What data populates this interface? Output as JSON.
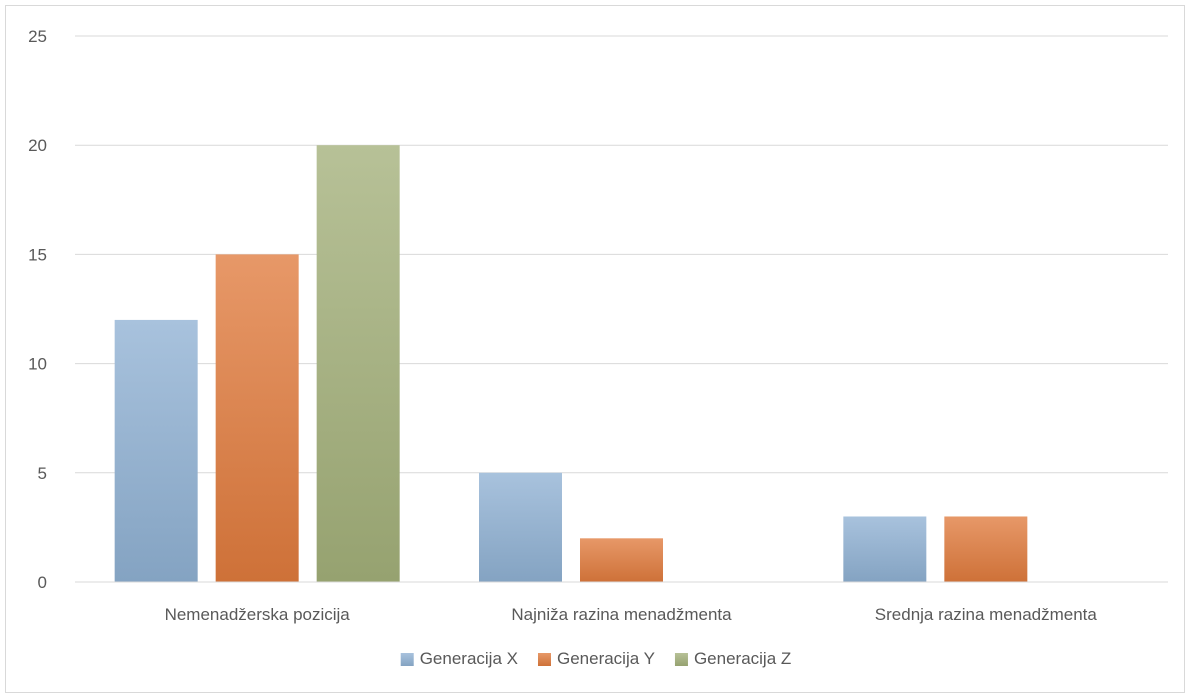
{
  "chart_data": {
    "type": "bar",
    "categories": [
      "Nemenadžerska pozicija",
      "Najniža razina menadžmenta",
      "Srednja razina menadžmenta"
    ],
    "series": [
      {
        "name": "Generacija X",
        "values": [
          12,
          5,
          3
        ],
        "color": "#8fb1d3"
      },
      {
        "name": "Generacija Y",
        "values": [
          15,
          2,
          3
        ],
        "color": "#e07b3d"
      },
      {
        "name": "Generacija Z",
        "values": [
          20,
          0,
          0
        ],
        "color": "#a3b07a"
      }
    ],
    "ylim": [
      0,
      25
    ],
    "yticks": [
      0,
      5,
      10,
      15,
      20,
      25
    ],
    "grid": true,
    "legend_position": "bottom",
    "title": "",
    "xlabel": "",
    "ylabel": ""
  }
}
